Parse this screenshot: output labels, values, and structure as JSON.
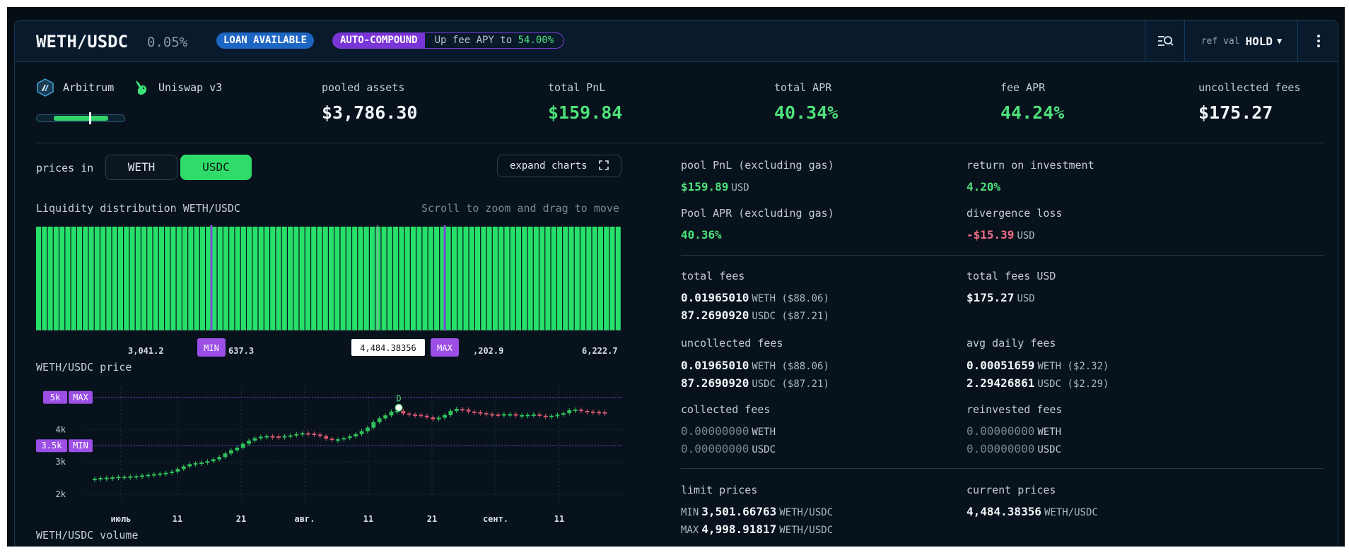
{
  "header": {
    "pair": "WETH/USDC",
    "fee_tier": "0.05%",
    "badge_loan": "LOAN AVAILABLE",
    "badge_compound": "AUTO-COMPOUND",
    "compound_text": "Up fee APY to",
    "compound_pct": "54.00%",
    "ref_label": "ref val",
    "ref_value": "HOLD",
    "icons": {
      "search": "filter-search-icon",
      "more": "more-vertical-icon"
    }
  },
  "chains": [
    {
      "label": "Arbitrum",
      "icon": "arbitrum-icon"
    },
    {
      "label": "Uniswap v3",
      "icon": "uniswap-unicorn-icon"
    }
  ],
  "range_indicator": {
    "in_range": true,
    "position": 0.6
  },
  "metrics": [
    {
      "label": "pooled assets",
      "value": "$3,786.30"
    },
    {
      "label": "total PnL",
      "value": "$159.84"
    },
    {
      "label": "total APR",
      "value": "40.34%"
    },
    {
      "label": "fee APR",
      "value": "44.24%"
    },
    {
      "label": "uncollected fees",
      "value": "$175.27"
    }
  ],
  "controls": {
    "prices_in_label": "prices in",
    "options": [
      "WETH",
      "USDC"
    ],
    "selected": "USDC",
    "expand_label": "expand charts"
  },
  "liquidity": {
    "title": "Liquidity distribution WETH/USDC",
    "hint": "Scroll to zoom and drag to move",
    "min_label": "MIN",
    "max_label": "MAX",
    "current": "4,484.38356",
    "ticks": [
      "3,041.2",
      "637.3",
      ",202.9",
      "6,222.7"
    ]
  },
  "price_chart": {
    "title": "WETH/USDC price",
    "max_label": "5k",
    "max_tag": "MAX",
    "min_label": "3.5k",
    "min_tag": "MIN",
    "y_ticks": [
      "4k",
      "3k",
      "2k"
    ],
    "x_ticks": [
      "июль",
      "11",
      "21",
      "авг.",
      "11",
      "21",
      "сент.",
      "11"
    ],
    "marker": "D"
  },
  "volume_chart": {
    "title": "WETH/USDC volume"
  },
  "chart_data": {
    "type": "candlestick",
    "title": "WETH/USDC price",
    "y_ticks": [
      "2k",
      "3k",
      "4k"
    ],
    "ylim": [
      1800,
      5300
    ],
    "reference_lines": [
      {
        "label": "5k",
        "tag": "MAX",
        "value": 4998.92
      },
      {
        "label": "3.5k",
        "tag": "MIN",
        "value": 3501.67
      }
    ],
    "x_ticks": [
      "июль",
      "11",
      "21",
      "авг.",
      "11",
      "21",
      "сент.",
      "11"
    ],
    "close_values": [
      2480,
      2500,
      2510,
      2520,
      2540,
      2540,
      2550,
      2560,
      2580,
      2600,
      2620,
      2640,
      2660,
      2700,
      2780,
      2860,
      2930,
      2960,
      2980,
      3020,
      3080,
      3150,
      3260,
      3360,
      3440,
      3560,
      3660,
      3740,
      3780,
      3800,
      3790,
      3780,
      3800,
      3820,
      3860,
      3890,
      3880,
      3850,
      3800,
      3720,
      3680,
      3700,
      3740,
      3790,
      3860,
      3950,
      4060,
      4230,
      4350,
      4440,
      4560,
      4580,
      4500,
      4470,
      4460,
      4430,
      4380,
      4320,
      4370,
      4450,
      4580,
      4640,
      4620,
      4560,
      4540,
      4510,
      4480,
      4470,
      4460,
      4480,
      4480,
      4440,
      4450,
      4460,
      4470,
      4430,
      4420,
      4430,
      4460,
      4510,
      4600,
      4620,
      4580,
      4560,
      4550,
      4540,
      4520
    ],
    "liquidity_bins": 100
  },
  "stats": {
    "pool_pnl": {
      "label": "pool PnL (excluding gas)",
      "value": "$159.89",
      "unit": "USD"
    },
    "roi": {
      "label": "return on investment",
      "value": "4.20%"
    },
    "pool_apr": {
      "label": "Pool APR (excluding gas)",
      "value": "40.36%"
    },
    "divergence": {
      "label": "divergence loss",
      "value": "-$15.39",
      "unit": "USD"
    },
    "total_fees": {
      "label": "total fees",
      "line1": "0.01965010",
      "unit1": "WETH ($88.06)",
      "line2": "87.2690920",
      "unit2": "USDC ($87.21)"
    },
    "total_fees_usd": {
      "label": "total fees USD",
      "value": "$175.27",
      "unit": "USD"
    },
    "uncollected_fees": {
      "label": "uncollected fees",
      "line1": "0.01965010",
      "unit1": "WETH ($88.06)",
      "line2": "87.2690920",
      "unit2": "USDC ($87.21)"
    },
    "avg_daily_fees": {
      "label": "avg daily fees",
      "line1": "0.00051659",
      "unit1": "WETH ($2.32)",
      "line2": "2.29426861",
      "unit2": "USDC ($2.29)"
    },
    "collected_fees": {
      "label": "collected fees",
      "line1": "0.00000000",
      "unit1": "WETH",
      "line2": "0.00000000",
      "unit2": "USDC"
    },
    "reinvested_fees": {
      "label": "reinvested fees",
      "line1": "0.00000000",
      "unit1": "WETH",
      "line2": "0.00000000",
      "unit2": "USDC"
    },
    "limit_prices": {
      "label": "limit prices",
      "min_prefix": "MIN",
      "min": "3,501.66763",
      "min_unit": "WETH/USDC",
      "max_prefix": "MAX",
      "max": "4,998.91817",
      "max_unit": "WETH/USDC"
    },
    "current_prices": {
      "label": "current prices",
      "value": "4,484.38356",
      "unit": "WETH/USDC"
    }
  },
  "colors": {
    "accent_green": "#4ee27b",
    "loss_red": "#f06b85",
    "badge_blue": "#1d66c4",
    "badge_purple": "#7a35d6"
  }
}
